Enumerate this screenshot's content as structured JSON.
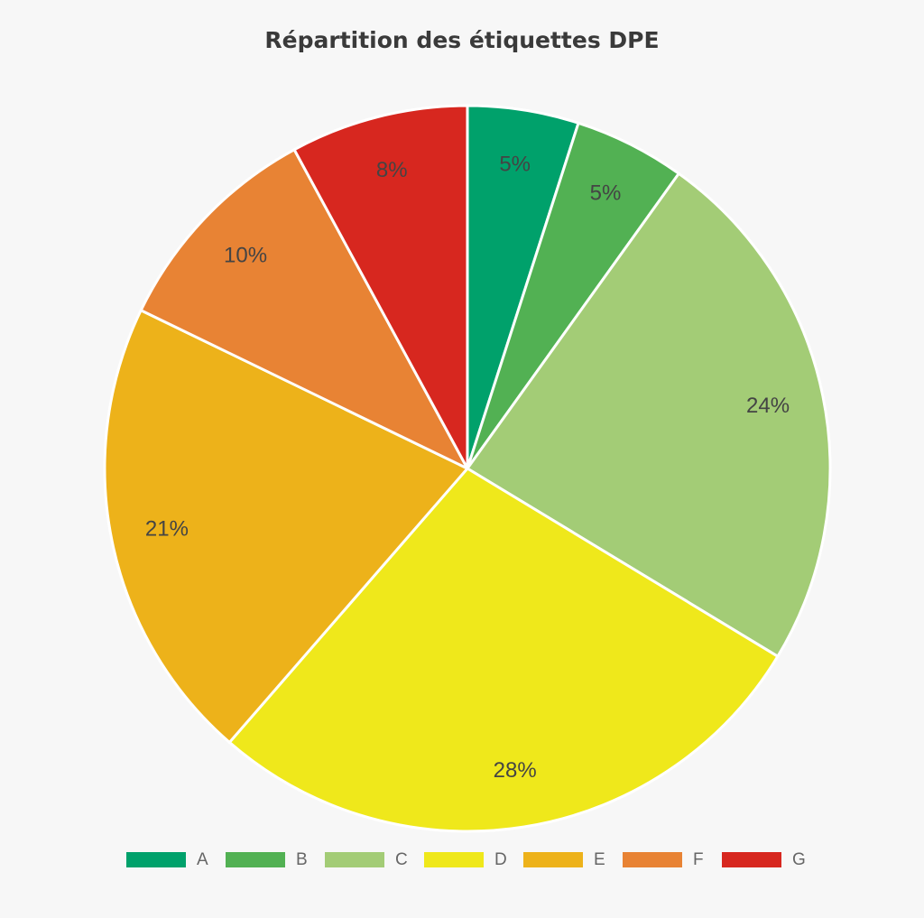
{
  "chart_data": {
    "type": "pie",
    "title": "Répartition des étiquettes DPE",
    "categories": [
      "A",
      "B",
      "C",
      "D",
      "E",
      "F",
      "G"
    ],
    "values": [
      5,
      5,
      24,
      28,
      21,
      10,
      8
    ],
    "value_labels": [
      "5%",
      "5%",
      "24%",
      "28%",
      "21%",
      "10%",
      "8%"
    ],
    "colors": [
      "#00a16b",
      "#52b153",
      "#a3cc76",
      "#efe81b",
      "#edb21a",
      "#e88334",
      "#d7271f"
    ],
    "start": "top",
    "direction": "clockwise",
    "legend": "bottom"
  }
}
